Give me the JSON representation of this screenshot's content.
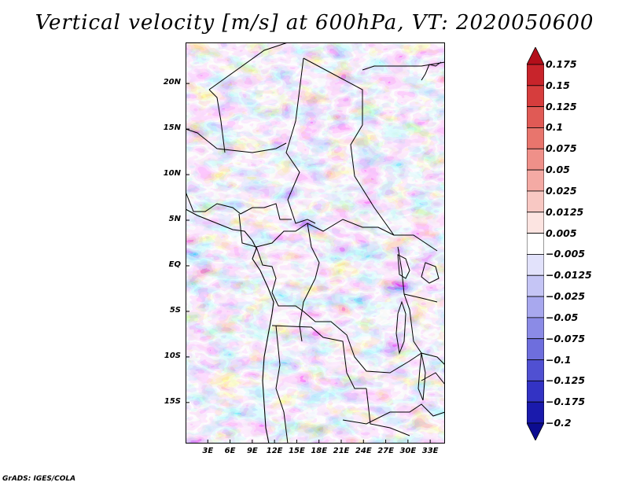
{
  "title": "Vertical velocity [m/s] at 600hPa, VT: 2020050600",
  "credit": "GrADS: IGES/COLA",
  "map": {
    "region_description": "Central Africa",
    "lat_labels": [
      "20N",
      "15N",
      "10N",
      "5N",
      "EQ",
      "5S",
      "10S",
      "15S"
    ],
    "lat_values": [
      20,
      15,
      10,
      5,
      0,
      -5,
      -10,
      -15
    ],
    "lon_labels": [
      "3E",
      "6E",
      "9E",
      "12E",
      "15E",
      "18E",
      "21E",
      "24E",
      "27E",
      "30E",
      "33E"
    ],
    "lon_values": [
      3,
      6,
      9,
      12,
      15,
      18,
      21,
      24,
      27,
      30,
      33
    ],
    "lon_range": [
      0,
      35
    ],
    "lat_range": [
      -19.5,
      24.5
    ]
  },
  "colorbar": {
    "labels": [
      "0.175",
      "0.15",
      "0.125",
      "0.1",
      "0.075",
      "0.05",
      "0.025",
      "0.0125",
      "0.005",
      "−0.005",
      "−0.0125",
      "−0.025",
      "−0.05",
      "−0.075",
      "−0.1",
      "−0.125",
      "−0.175",
      "−0.2"
    ],
    "colors": [
      "#b30f1a",
      "#c8242b",
      "#d63d3d",
      "#e05a55",
      "#e8756d",
      "#ef9089",
      "#f4aaa4",
      "#f8c8c3",
      "#fce4e1",
      "#ffffff",
      "#e2e2fb",
      "#c5c5f5",
      "#a8a8ee",
      "#8b8be6",
      "#6e6edd",
      "#5050d2",
      "#3333c4",
      "#1a1aac",
      "#0c0c90"
    ]
  }
}
